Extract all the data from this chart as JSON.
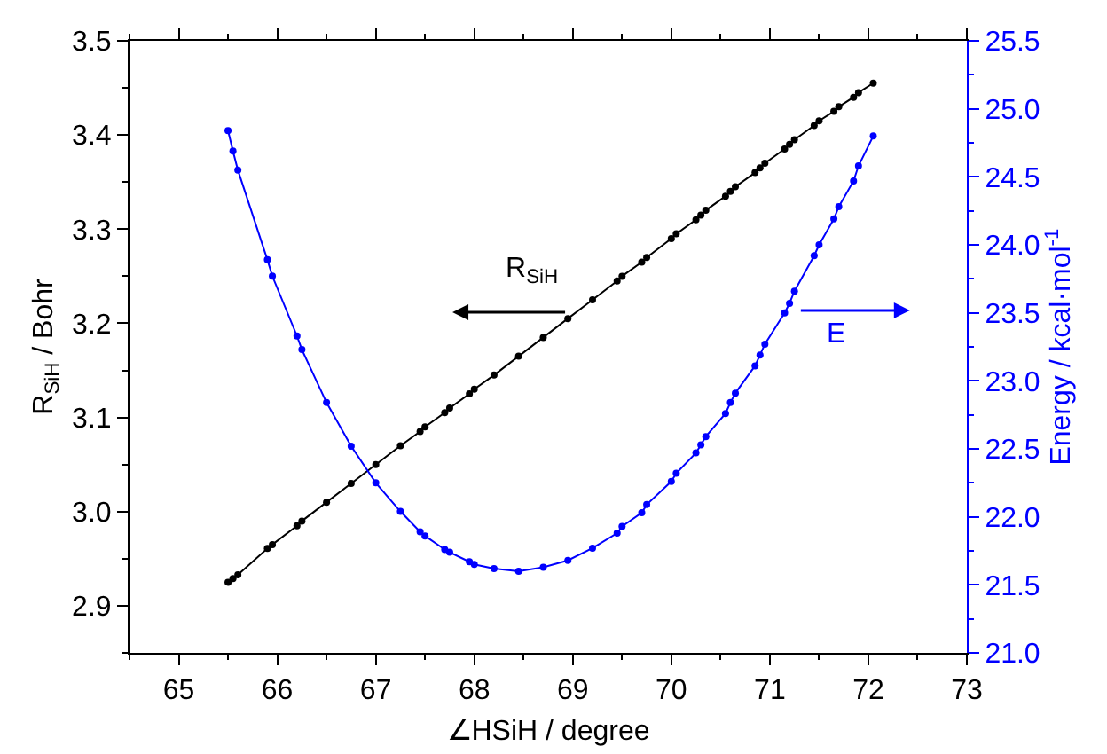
{
  "chart_data": {
    "type": "line",
    "xlabel": "∠HSiH / degree",
    "ylabel": "R$_{SiH}$ / Bohr",
    "y2label": "Energy / kcal·mol$^{-1}$",
    "x": [
      65.5,
      65.55,
      65.6,
      65.9,
      65.95,
      66.2,
      66.25,
      66.5,
      66.75,
      67.0,
      67.25,
      67.45,
      67.5,
      67.7,
      67.75,
      67.95,
      68.0,
      68.2,
      68.45,
      68.7,
      68.95,
      69.2,
      69.45,
      69.5,
      69.7,
      69.75,
      70.0,
      70.05,
      70.25,
      70.3,
      70.35,
      70.55,
      70.6,
      70.65,
      70.85,
      70.9,
      70.95,
      71.15,
      71.2,
      71.25,
      71.45,
      71.5,
      71.65,
      71.7,
      71.85,
      71.9,
      72.05
    ],
    "series": [
      {
        "color": "#000000",
        "axis": "y",
        "values": [
          2.925,
          2.929,
          2.933,
          2.961,
          2.965,
          2.985,
          2.99,
          3.01,
          3.03,
          3.05,
          3.07,
          3.085,
          3.09,
          3.105,
          3.11,
          3.125,
          3.13,
          3.145,
          3.165,
          3.185,
          3.205,
          3.225,
          3.245,
          3.25,
          3.265,
          3.27,
          3.29,
          3.295,
          3.31,
          3.315,
          3.32,
          3.335,
          3.34,
          3.345,
          3.36,
          3.365,
          3.37,
          3.385,
          3.39,
          3.395,
          3.41,
          3.415,
          3.425,
          3.43,
          3.44,
          3.445,
          3.455
        ]
      },
      {
        "color": "#0000ff",
        "axis": "y2",
        "values": [
          24.84,
          24.69,
          24.55,
          23.89,
          23.77,
          23.33,
          23.23,
          22.84,
          22.52,
          22.25,
          22.04,
          21.89,
          21.86,
          21.76,
          21.74,
          21.67,
          21.65,
          21.62,
          21.6,
          21.63,
          21.68,
          21.77,
          21.88,
          21.93,
          22.03,
          22.09,
          22.26,
          22.32,
          22.47,
          22.53,
          22.59,
          22.76,
          22.84,
          22.91,
          23.11,
          23.19,
          23.27,
          23.5,
          23.57,
          23.66,
          23.92,
          24.0,
          24.19,
          24.28,
          24.47,
          24.58,
          24.8
        ]
      }
    ],
    "annotations": [
      "R$_{SiH}$",
      "E"
    ],
    "xlim": [
      64.5,
      73
    ],
    "xticks": [
      65,
      66,
      67,
      68,
      69,
      70,
      71,
      72,
      73
    ],
    "ylim": [
      2.85,
      3.5
    ],
    "yticks": [
      {
        "value": 2.9,
        "label": "2.9"
      },
      {
        "value": 3.0,
        "label": "3.0"
      },
      {
        "value": 3.1,
        "label": "3.1"
      },
      {
        "value": 3.2,
        "label": "3.2"
      },
      {
        "value": 3.3,
        "label": "3.3"
      },
      {
        "value": 3.4,
        "label": "3.4"
      },
      {
        "value": 3.5,
        "label": "3.5"
      }
    ],
    "y2lim": [
      21.0,
      25.5
    ],
    "y2ticks": [
      {
        "value": 21,
        "label": "21.0"
      },
      {
        "value": 21.5,
        "label": "21.5"
      },
      {
        "value": 22,
        "label": "22.0"
      },
      {
        "value": 22.5,
        "label": "22.5"
      },
      {
        "value": 23,
        "label": "23.0"
      },
      {
        "value": 23.5,
        "label": "23.5"
      },
      {
        "value": 24,
        "label": "24.0"
      },
      {
        "value": 24.5,
        "label": "24.5"
      },
      {
        "value": 25,
        "label": "25.0"
      },
      {
        "value": 25.5,
        "label": "25.5"
      }
    ],
    "grid": false,
    "legend": false,
    "marker": "circle",
    "line_style": "solid"
  }
}
